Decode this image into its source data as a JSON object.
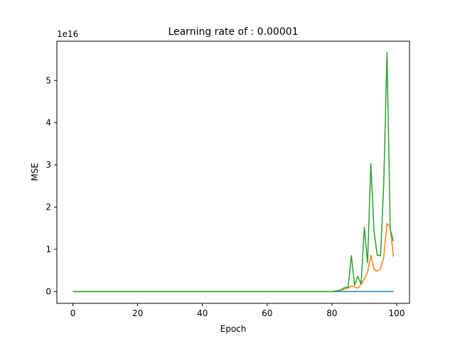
{
  "chart_data": {
    "type": "line",
    "title": "Learning rate of : 0.00001",
    "xlabel": "Epoch",
    "ylabel": "MSE",
    "y_scale_label": "1e16",
    "xlim": [
      -4.95,
      103.95
    ],
    "ylim": [
      -0.28,
      5.93
    ],
    "x_ticks": [
      0,
      20,
      40,
      60,
      80,
      100
    ],
    "y_ticks": [
      0,
      1,
      2,
      3,
      4,
      5
    ],
    "grid": false,
    "colors": [
      "#1f77b4",
      "#ff7f0e",
      "#2ca02c"
    ],
    "x": [
      0,
      1,
      2,
      3,
      4,
      5,
      6,
      7,
      8,
      9,
      10,
      11,
      12,
      13,
      14,
      15,
      16,
      17,
      18,
      19,
      20,
      21,
      22,
      23,
      24,
      25,
      26,
      27,
      28,
      29,
      30,
      31,
      32,
      33,
      34,
      35,
      36,
      37,
      38,
      39,
      40,
      41,
      42,
      43,
      44,
      45,
      46,
      47,
      48,
      49,
      50,
      51,
      52,
      53,
      54,
      55,
      56,
      57,
      58,
      59,
      60,
      61,
      62,
      63,
      64,
      65,
      66,
      67,
      68,
      69,
      70,
      71,
      72,
      73,
      74,
      75,
      76,
      77,
      78,
      79,
      80,
      81,
      82,
      83,
      84,
      85,
      86,
      87,
      88,
      89,
      90,
      91,
      92,
      93,
      94,
      95,
      96,
      97,
      98,
      99
    ],
    "series": [
      {
        "values": [
          0,
          0,
          0,
          0,
          0,
          0,
          0,
          0,
          0,
          0,
          0,
          0,
          0,
          0,
          0,
          0,
          0,
          0,
          0,
          0,
          0,
          0,
          0,
          0,
          0,
          0,
          0,
          0,
          0,
          0,
          0,
          0,
          0,
          0,
          0,
          0,
          0,
          0,
          0,
          0,
          0,
          0,
          0,
          0,
          0,
          0,
          0,
          0,
          0,
          0,
          0,
          0,
          0,
          0,
          0,
          0,
          0,
          0,
          0,
          0,
          0,
          0,
          0,
          0,
          0,
          0,
          0,
          0,
          0,
          0,
          0,
          0,
          0,
          0,
          0,
          0,
          0,
          0,
          0,
          0,
          0,
          0,
          0,
          0,
          0,
          0,
          0,
          0,
          0,
          0,
          0,
          0,
          0,
          0,
          0,
          0,
          0,
          0,
          0,
          0
        ]
      },
      {
        "values": [
          0,
          0,
          0,
          0,
          0,
          0,
          0,
          0,
          0,
          0,
          0,
          0,
          0,
          0,
          0,
          0,
          0,
          0,
          0,
          0,
          0,
          0,
          0,
          0,
          0,
          0,
          0,
          0,
          0,
          0,
          0,
          0,
          0,
          0,
          0,
          0,
          0,
          0,
          0,
          0,
          0,
          0,
          0,
          0,
          0,
          0,
          0,
          0,
          0,
          0,
          0,
          0,
          0,
          0,
          0,
          0,
          0,
          0,
          0,
          0,
          0,
          0,
          0,
          0,
          0,
          0,
          0,
          0,
          0,
          0,
          0,
          0,
          0,
          0,
          0,
          0,
          0,
          0,
          0,
          0,
          0,
          0.01,
          0.02,
          0.04,
          0.06,
          0.08,
          0.13,
          0.11,
          0.08,
          0.17,
          0.3,
          0.45,
          0.86,
          0.52,
          0.48,
          0.54,
          0.82,
          1.61,
          1.53,
          0.82
        ]
      },
      {
        "values": [
          0,
          0,
          0,
          0,
          0,
          0,
          0,
          0,
          0,
          0,
          0,
          0,
          0,
          0,
          0,
          0,
          0,
          0,
          0,
          0,
          0,
          0,
          0,
          0,
          0,
          0,
          0,
          0,
          0,
          0,
          0,
          0,
          0,
          0,
          0,
          0,
          0,
          0,
          0,
          0,
          0,
          0,
          0,
          0,
          0,
          0,
          0,
          0,
          0,
          0,
          0,
          0,
          0,
          0,
          0,
          0,
          0,
          0,
          0,
          0,
          0,
          0,
          0,
          0,
          0,
          0,
          0,
          0,
          0,
          0,
          0,
          0,
          0,
          0,
          0,
          0,
          0,
          0,
          0,
          0,
          0,
          0.01,
          0.02,
          0.05,
          0.1,
          0.1,
          0.85,
          0.15,
          0.36,
          0.17,
          1.52,
          0.68,
          3.03,
          1.42,
          0.86,
          0.85,
          2.55,
          5.66,
          1.48,
          1.19
        ]
      }
    ]
  }
}
